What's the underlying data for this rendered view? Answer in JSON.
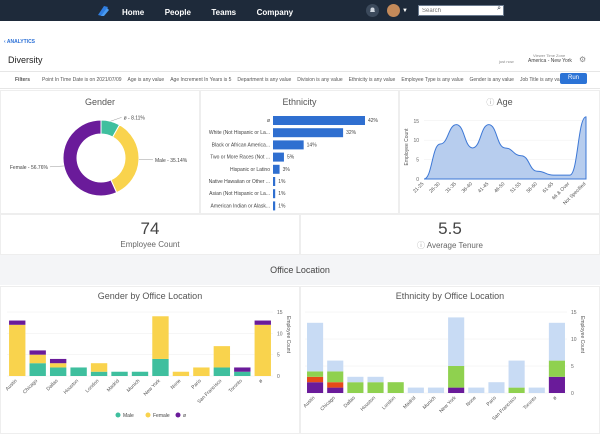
{
  "nav": {
    "home": "Home",
    "people": "People",
    "teams": "Teams",
    "company": "Company"
  },
  "search": {
    "placeholder": "Search"
  },
  "icons": {
    "logo": "logo-icon",
    "bell": "bell-icon",
    "search": "search-icon",
    "gear": "gear-icon",
    "info": "info-icon"
  },
  "breadcrumb": "‹ ANALYTICS",
  "page_title": "Diversity",
  "timezone": {
    "label": "Viewer Time Zone",
    "just_now": "just now",
    "value": "America - New York"
  },
  "filters": {
    "title": "Filters",
    "items": [
      "Point In Time Date is on 2021/07/09",
      "Age is any value",
      "Age Increment In Years is 5",
      "Department is any value",
      "Division is any value",
      "Ethnicity is any value",
      "Employee Type is any value",
      "Gender is any value",
      "Job Title is any value"
    ],
    "run_label": "Run"
  },
  "gender": {
    "title": "Gender",
    "slices": [
      {
        "label": "Female",
        "pct": 56.76,
        "text": "Female - 56.76%",
        "color": "#6a1b9a"
      },
      {
        "label": "Male",
        "pct": 35.14,
        "text": "Male - 35.14%",
        "color": "#f9d34d"
      },
      {
        "label": "ø",
        "pct": 8.11,
        "text": "ø - 8.11%",
        "color": "#3fbf9e"
      }
    ]
  },
  "ethnicity": {
    "title": "Ethnicity",
    "bars": [
      {
        "label": "ø",
        "pct": 42,
        "text": "42%"
      },
      {
        "label": "White (Not Hispanic or La...",
        "pct": 32,
        "text": "32%"
      },
      {
        "label": "Black or African America...",
        "pct": 14,
        "text": "14%"
      },
      {
        "label": "Two or More Races (Not ...",
        "pct": 5,
        "text": "5%"
      },
      {
        "label": "Hispanic or Latino",
        "pct": 3,
        "text": "3%"
      },
      {
        "label": "Native Hawaiian or Other ...",
        "pct": 1,
        "text": "1%"
      },
      {
        "label": "Asian (Not Hispanic or La...",
        "pct": 1,
        "text": "1%"
      },
      {
        "label": "American Indian or Alask...",
        "pct": 1,
        "text": "1%"
      }
    ],
    "color": "#2f6fd0"
  },
  "age": {
    "title": "Age",
    "ylabel": "Employee Count",
    "yticks": [
      "0",
      "5",
      "10",
      "15"
    ],
    "cats": [
      "21-25",
      "26-30",
      "31-35",
      "36-40",
      "41-45",
      "46-50",
      "51-55",
      "56-60",
      "61-65",
      "66 & Over",
      "Not Specified"
    ],
    "values": [
      0,
      9,
      14,
      8,
      14,
      8,
      6,
      2,
      1,
      1,
      16
    ],
    "ymax": 17
  },
  "kpi": {
    "employees": {
      "value": "74",
      "label": "Employee Count"
    },
    "tenure": {
      "value": "5.5",
      "label": "Average Tenure"
    }
  },
  "section_title": "Office Location",
  "gender_office": {
    "title": "Gender by Office Location",
    "ylabel": "Employee Count",
    "yticks": [
      "0",
      "5",
      "10",
      "15"
    ],
    "ymax": 15,
    "cats": [
      "Austin",
      "Chicago",
      "Dallas",
      "Houston",
      "London",
      "Madrid",
      "Munich",
      "New York",
      "None",
      "Paris",
      "San Francisco",
      "Toronto",
      "ø"
    ],
    "series": [
      {
        "name": "Male",
        "color": "#3fbf9e",
        "values": [
          0,
          3,
          2,
          2,
          1,
          1,
          1,
          4,
          0,
          0,
          2,
          1,
          0
        ]
      },
      {
        "name": "Female",
        "color": "#f9d34d",
        "values": [
          12,
          2,
          1,
          0,
          2,
          0,
          0,
          10,
          1,
          2,
          5,
          0,
          12
        ]
      },
      {
        "name": "ø",
        "color": "#6a1b9a",
        "values": [
          1,
          1,
          1,
          0,
          0,
          0,
          0,
          0,
          0,
          0,
          0,
          1,
          1
        ]
      }
    ],
    "legend": [
      "Male",
      "Female",
      "ø"
    ]
  },
  "ethnicity_office": {
    "title": "Ethnicity by Office Location",
    "ylabel": "Employee Count",
    "yticks": [
      "0",
      "5",
      "10",
      "15"
    ],
    "ymax": 15,
    "cats": [
      "Austin",
      "Chicago",
      "Dallas",
      "Houston",
      "London",
      "Madrid",
      "Munich",
      "New York",
      "None",
      "Paris",
      "San Francisco",
      "Toronto",
      "ø"
    ],
    "series": [
      {
        "color": "#6a1b9a",
        "values": [
          2,
          1,
          0,
          0,
          0,
          0,
          0,
          1,
          0,
          0,
          0,
          0,
          3
        ]
      },
      {
        "color": "#e64a19",
        "values": [
          1,
          1,
          0,
          0,
          0,
          0,
          0,
          0,
          0,
          0,
          0,
          0,
          0
        ]
      },
      {
        "color": "#8fd14f",
        "values": [
          1,
          2,
          2,
          2,
          2,
          0,
          0,
          4,
          0,
          0,
          1,
          0,
          3
        ]
      },
      {
        "color": "#c8dbf4",
        "values": [
          9,
          2,
          1,
          1,
          0,
          1,
          1,
          9,
          1,
          2,
          5,
          1,
          7
        ]
      }
    ]
  }
}
